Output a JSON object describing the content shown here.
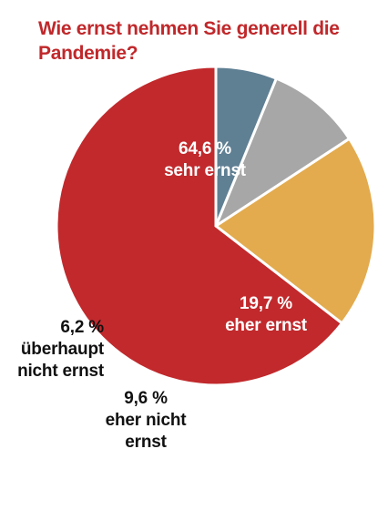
{
  "colors": {
    "title": "#c0282b",
    "label_inside": "#ffffff",
    "label_outside": "#111111"
  },
  "chart_data": {
    "type": "pie",
    "title": "Wie ernst nehmen Sie generell die Pandemie?",
    "start_angle_deg": -90,
    "direction": "counterclockwise",
    "slices": [
      {
        "label": "sehr ernst",
        "value": 64.6,
        "value_text": "64,6 %",
        "color": "#c1292c"
      },
      {
        "label": "eher ernst",
        "value": 19.7,
        "value_text": "19,7 %",
        "color": "#e3ab4e"
      },
      {
        "label": "eher nicht ernst",
        "value": 9.6,
        "value_text": "9,6 %",
        "color": "#a7a7a7"
      },
      {
        "label": "überhaupt nicht ernst",
        "value": 6.2,
        "value_text": "6,2 %",
        "color": "#5f7f93"
      }
    ]
  },
  "labels": {
    "sehr": {
      "pct": "64,6 %",
      "line1": "sehr ernst"
    },
    "eher": {
      "pct": "19,7 %",
      "line1": "eher ernst"
    },
    "eher_nicht": {
      "pct": "9,6 %",
      "line1": "eher nicht",
      "line2": "ernst"
    },
    "ueberhaupt": {
      "pct": "6,2 %",
      "line1": "überhaupt",
      "line2": "nicht ernst"
    }
  }
}
